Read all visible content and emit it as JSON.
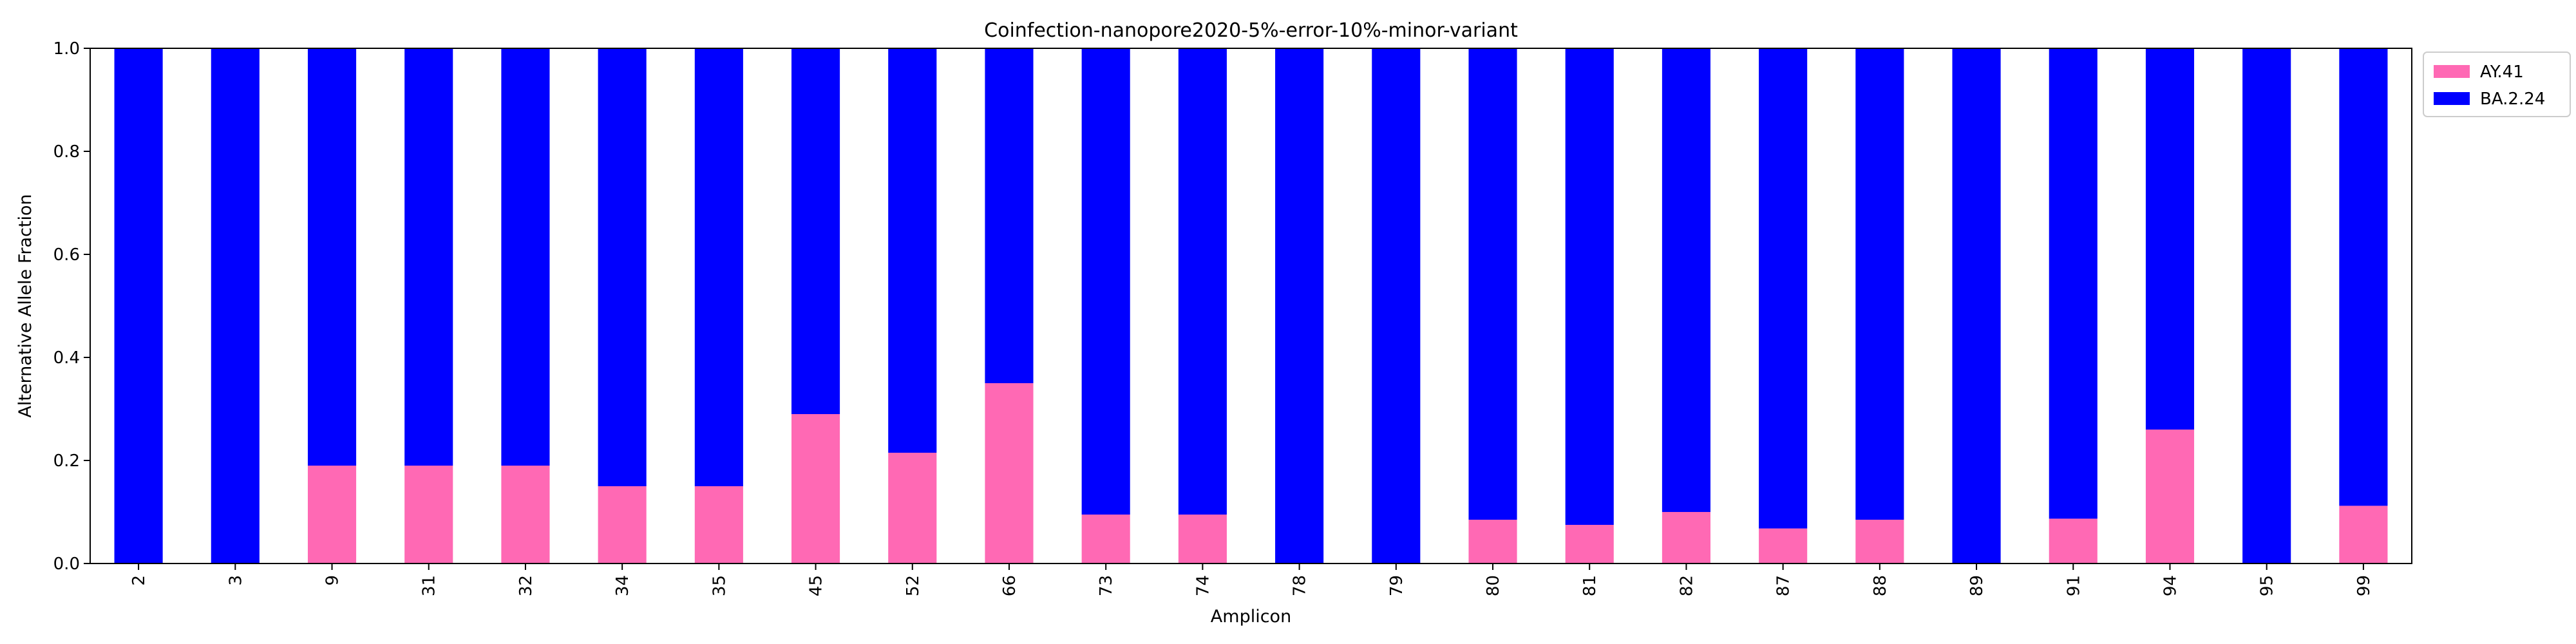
{
  "chart_data": {
    "type": "bar",
    "stacked": true,
    "title": "Coinfection-nanopore2020-5%-error-10%-minor-variant",
    "xlabel": "Amplicon",
    "ylabel": "Alternative Allele Fraction",
    "ylim": [
      0,
      1.0
    ],
    "yticks": [
      "0.0",
      "0.2",
      "0.4",
      "0.6",
      "0.8",
      "1.0"
    ],
    "grid": false,
    "legend_position": "outside-top-right",
    "categories": [
      "2",
      "3",
      "9",
      "31",
      "32",
      "34",
      "35",
      "45",
      "52",
      "66",
      "73",
      "74",
      "78",
      "79",
      "80",
      "81",
      "82",
      "87",
      "88",
      "89",
      "91",
      "94",
      "95",
      "99"
    ],
    "series": [
      {
        "name": "AY.41",
        "color": "#ff69b4",
        "values": [
          0.0,
          0.0,
          0.19,
          0.19,
          0.19,
          0.15,
          0.15,
          0.29,
          0.215,
          0.35,
          0.095,
          0.095,
          0.0,
          0.0,
          0.085,
          0.075,
          0.1,
          0.068,
          0.085,
          0.0,
          0.087,
          0.26,
          0.0,
          0.112
        ]
      },
      {
        "name": "BA.2.24",
        "color": "#0000ff",
        "values": [
          1.0,
          1.0,
          0.81,
          0.81,
          0.81,
          0.85,
          0.85,
          0.71,
          0.785,
          0.65,
          0.905,
          0.905,
          1.0,
          1.0,
          0.915,
          0.925,
          0.9,
          0.932,
          0.915,
          1.0,
          0.913,
          0.74,
          1.0,
          0.888
        ]
      }
    ]
  }
}
